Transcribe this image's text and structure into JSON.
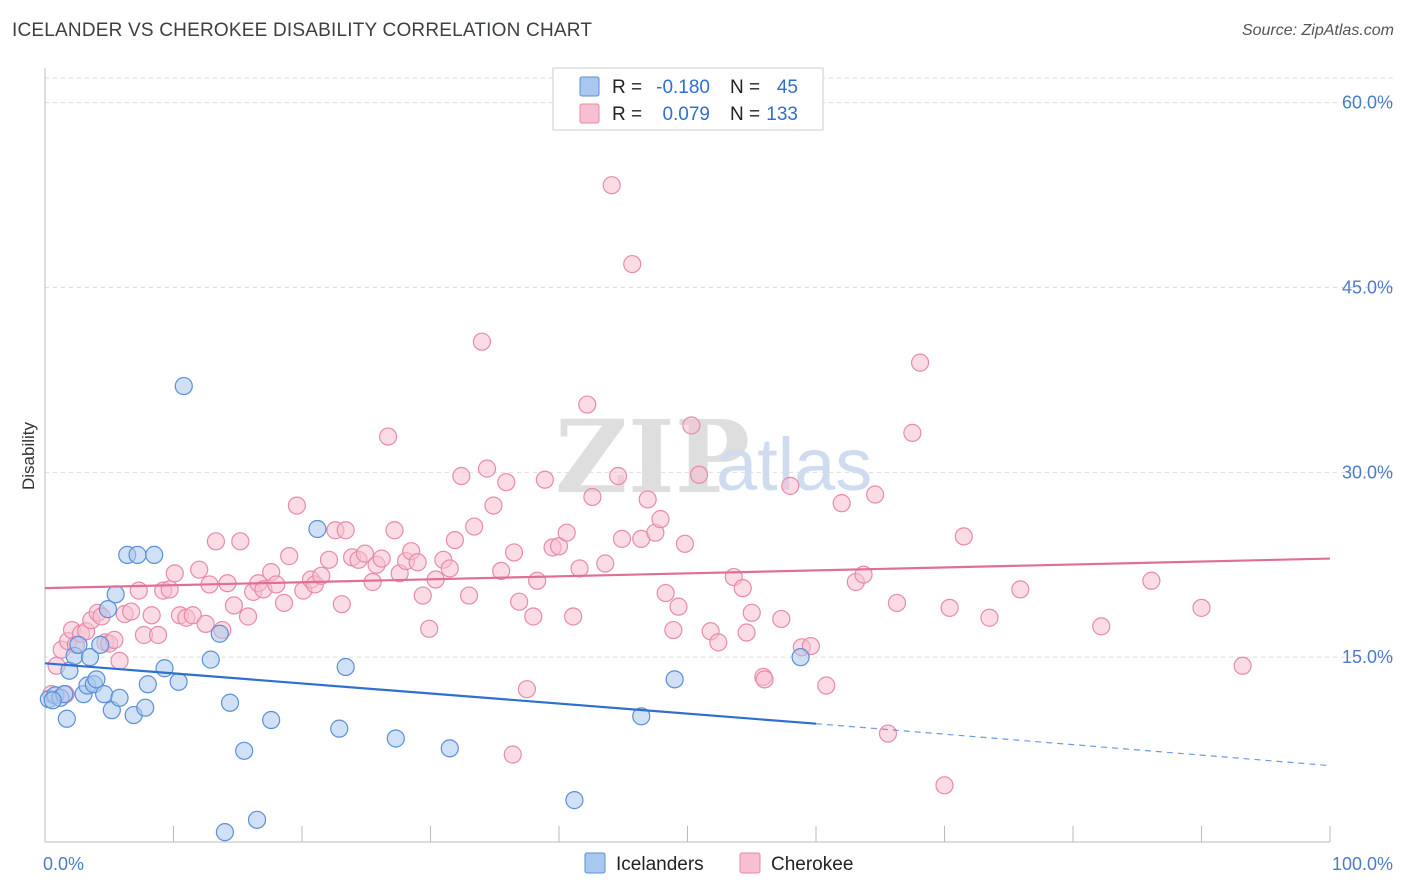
{
  "title": "ICELANDER VS CHEROKEE DISABILITY CORRELATION CHART",
  "source": "Source: ZipAtlas.com",
  "watermark": {
    "part1": "ZIP",
    "part2": "atlas"
  },
  "colors": {
    "blue_fill": "#a9c8ef",
    "blue_stroke": "#5b8fd6",
    "blue_line": "#2f6fd0",
    "pink_fill": "#f7bfd0",
    "pink_stroke": "#e88aa9",
    "pink_line": "#e06f97",
    "tick_text": "#4a7cc8",
    "grid": "#dddddd"
  },
  "legend": {
    "rows": [
      {
        "r_label": "R =",
        "r_value": "-0.180",
        "n_label": "N =",
        "n_value": "45"
      },
      {
        "r_label": "R =",
        "r_value": "0.079",
        "n_label": "N =",
        "n_value": "133"
      }
    ]
  },
  "chart_data": {
    "type": "scatter",
    "title": "ICELANDER VS CHEROKEE DISABILITY CORRELATION CHART",
    "xlabel": "",
    "ylabel": "Disability",
    "xlim": [
      0,
      100
    ],
    "ylim": [
      0,
      62
    ],
    "x_tick_labels": [
      "0.0%",
      "100.0%"
    ],
    "y_ticks": [
      15,
      30,
      45,
      60
    ],
    "y_tick_labels": [
      "15.0%",
      "30.0%",
      "45.0%",
      "60.0%"
    ],
    "grid": true,
    "legend_position": "bottom-center",
    "series": [
      {
        "name": "Icelanders",
        "color": "blue",
        "trend": {
          "x0": 0,
          "y0": 14.5,
          "x1": 60,
          "y1": 9.6,
          "dashed_to_x": 100,
          "dashed_y": 6.2
        },
        "points": [
          [
            0.3,
            11.6
          ],
          [
            0.8,
            11.9
          ],
          [
            1.2,
            11.7
          ],
          [
            1.5,
            12.0
          ],
          [
            1.7,
            10.0
          ],
          [
            1.9,
            13.9
          ],
          [
            2.3,
            15.1
          ],
          [
            2.6,
            16.0
          ],
          [
            3.0,
            12.0
          ],
          [
            3.3,
            12.7
          ],
          [
            3.5,
            15.0
          ],
          [
            3.8,
            12.8
          ],
          [
            4.0,
            13.2
          ],
          [
            4.3,
            16.0
          ],
          [
            4.6,
            12.0
          ],
          [
            4.9,
            18.9
          ],
          [
            5.2,
            10.7
          ],
          [
            5.5,
            20.1
          ],
          [
            5.8,
            11.7
          ],
          [
            6.4,
            23.3
          ],
          [
            6.9,
            10.3
          ],
          [
            7.2,
            23.3
          ],
          [
            7.8,
            10.9
          ],
          [
            8.0,
            12.8
          ],
          [
            8.5,
            23.3
          ],
          [
            9.3,
            14.1
          ],
          [
            10.4,
            13.0
          ],
          [
            10.8,
            37.0
          ],
          [
            12.9,
            14.8
          ],
          [
            13.6,
            16.9
          ],
          [
            14.0,
            0.8
          ],
          [
            14.4,
            11.3
          ],
          [
            15.5,
            7.4
          ],
          [
            16.5,
            1.8
          ],
          [
            17.6,
            9.9
          ],
          [
            21.2,
            25.4
          ],
          [
            22.9,
            9.2
          ],
          [
            23.4,
            14.2
          ],
          [
            27.3,
            8.4
          ],
          [
            31.5,
            7.6
          ],
          [
            41.2,
            3.4
          ],
          [
            46.4,
            10.2
          ],
          [
            49.0,
            13.2
          ],
          [
            58.8,
            15.0
          ],
          [
            0.6,
            11.5
          ]
        ]
      },
      {
        "name": "Cherokee",
        "color": "pink",
        "trend": {
          "x0": 0,
          "y0": 20.6,
          "x1": 100,
          "y1": 23.0
        },
        "points": [
          [
            0.5,
            12.0
          ],
          [
            0.9,
            14.3
          ],
          [
            1.3,
            15.6
          ],
          [
            1.6,
            12.0
          ],
          [
            1.8,
            16.3
          ],
          [
            2.1,
            17.2
          ],
          [
            2.4,
            16.0
          ],
          [
            2.8,
            16.9
          ],
          [
            3.2,
            17.1
          ],
          [
            3.6,
            18.0
          ],
          [
            4.1,
            18.6
          ],
          [
            4.4,
            18.3
          ],
          [
            4.7,
            16.2
          ],
          [
            5.0,
            16.1
          ],
          [
            5.4,
            16.4
          ],
          [
            5.8,
            14.7
          ],
          [
            6.2,
            18.5
          ],
          [
            6.7,
            18.7
          ],
          [
            7.3,
            20.4
          ],
          [
            7.7,
            16.8
          ],
          [
            8.3,
            18.4
          ],
          [
            8.8,
            16.8
          ],
          [
            9.2,
            20.4
          ],
          [
            9.7,
            20.5
          ],
          [
            10.1,
            21.8
          ],
          [
            10.5,
            18.4
          ],
          [
            11.0,
            18.2
          ],
          [
            11.5,
            18.4
          ],
          [
            12.0,
            22.1
          ],
          [
            12.5,
            17.7
          ],
          [
            12.8,
            20.9
          ],
          [
            13.3,
            24.4
          ],
          [
            13.8,
            17.2
          ],
          [
            14.2,
            21.0
          ],
          [
            14.7,
            19.2
          ],
          [
            15.2,
            24.4
          ],
          [
            15.8,
            18.3
          ],
          [
            16.2,
            20.3
          ],
          [
            16.6,
            21.0
          ],
          [
            17.0,
            20.5
          ],
          [
            17.6,
            21.9
          ],
          [
            18.0,
            20.9
          ],
          [
            18.6,
            19.4
          ],
          [
            19.0,
            23.2
          ],
          [
            19.6,
            27.3
          ],
          [
            20.1,
            20.4
          ],
          [
            20.7,
            21.3
          ],
          [
            21.0,
            20.9
          ],
          [
            21.5,
            21.6
          ],
          [
            22.1,
            22.9
          ],
          [
            22.6,
            25.3
          ],
          [
            23.1,
            19.3
          ],
          [
            23.4,
            25.3
          ],
          [
            23.9,
            23.1
          ],
          [
            24.4,
            22.9
          ],
          [
            24.9,
            23.4
          ],
          [
            25.5,
            21.1
          ],
          [
            25.8,
            22.5
          ],
          [
            26.2,
            23.0
          ],
          [
            26.7,
            32.9
          ],
          [
            27.2,
            25.3
          ],
          [
            27.6,
            21.8
          ],
          [
            28.1,
            22.8
          ],
          [
            28.5,
            23.6
          ],
          [
            29.0,
            22.7
          ],
          [
            29.4,
            20.0
          ],
          [
            29.9,
            17.3
          ],
          [
            30.4,
            21.3
          ],
          [
            31.0,
            22.9
          ],
          [
            31.5,
            22.2
          ],
          [
            31.9,
            24.5
          ],
          [
            32.4,
            29.7
          ],
          [
            33.0,
            20.0
          ],
          [
            33.4,
            25.6
          ],
          [
            34.0,
            40.6
          ],
          [
            34.4,
            30.3
          ],
          [
            34.9,
            27.3
          ],
          [
            35.5,
            22.0
          ],
          [
            35.9,
            29.2
          ],
          [
            36.5,
            23.5
          ],
          [
            36.9,
            19.5
          ],
          [
            37.5,
            12.4
          ],
          [
            38.0,
            18.3
          ],
          [
            38.3,
            21.2
          ],
          [
            38.9,
            29.4
          ],
          [
            39.5,
            23.9
          ],
          [
            40.0,
            24.0
          ],
          [
            40.6,
            25.1
          ],
          [
            41.1,
            18.3
          ],
          [
            41.6,
            22.2
          ],
          [
            42.2,
            35.5
          ],
          [
            42.6,
            28.0
          ],
          [
            43.6,
            22.6
          ],
          [
            44.1,
            53.3
          ],
          [
            44.6,
            29.7
          ],
          [
            44.9,
            24.6
          ],
          [
            45.7,
            46.9
          ],
          [
            46.4,
            24.6
          ],
          [
            46.9,
            27.8
          ],
          [
            47.5,
            25.1
          ],
          [
            47.9,
            26.2
          ],
          [
            48.3,
            20.2
          ],
          [
            48.9,
            17.2
          ],
          [
            49.3,
            19.1
          ],
          [
            49.8,
            24.2
          ],
          [
            50.3,
            33.8
          ],
          [
            50.9,
            29.8
          ],
          [
            51.8,
            17.1
          ],
          [
            52.4,
            16.2
          ],
          [
            53.6,
            21.5
          ],
          [
            54.3,
            20.6
          ],
          [
            54.6,
            17.0
          ],
          [
            55.0,
            18.6
          ],
          [
            55.9,
            13.4
          ],
          [
            56.0,
            13.2
          ],
          [
            57.3,
            18.1
          ],
          [
            58.0,
            28.9
          ],
          [
            58.9,
            15.8
          ],
          [
            59.6,
            15.9
          ],
          [
            60.8,
            12.7
          ],
          [
            62.0,
            27.5
          ],
          [
            63.1,
            21.1
          ],
          [
            63.7,
            21.7
          ],
          [
            64.6,
            28.2
          ],
          [
            65.6,
            8.8
          ],
          [
            66.3,
            19.4
          ],
          [
            67.5,
            33.2
          ],
          [
            68.1,
            38.9
          ],
          [
            70.0,
            4.6
          ],
          [
            70.4,
            19.0
          ],
          [
            71.5,
            24.8
          ],
          [
            73.5,
            18.2
          ],
          [
            75.9,
            20.5
          ],
          [
            82.2,
            17.5
          ],
          [
            86.1,
            21.2
          ],
          [
            90.0,
            19.0
          ],
          [
            93.2,
            14.3
          ],
          [
            36.4,
            7.1
          ]
        ]
      }
    ]
  },
  "bottom_legend": {
    "items": [
      "Icelanders",
      "Cherokee"
    ]
  }
}
